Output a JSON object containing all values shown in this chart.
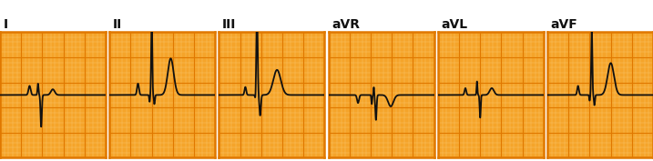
{
  "leads": [
    "I",
    "II",
    "III",
    "aVR",
    "aVL",
    "aVF"
  ],
  "bg_color": "#F5A42A",
  "grid_major_color": "#E07800",
  "grid_minor_color": "#FAC870",
  "ecg_color": "#111111",
  "title_color": "#111111",
  "border_color": "#E07800",
  "white_bg": "#ffffff",
  "panel_light_bg": "#FDE8C0",
  "n_major": 5,
  "n_minor": 5,
  "figw": 7.17,
  "figh": 1.77,
  "dpi": 100
}
